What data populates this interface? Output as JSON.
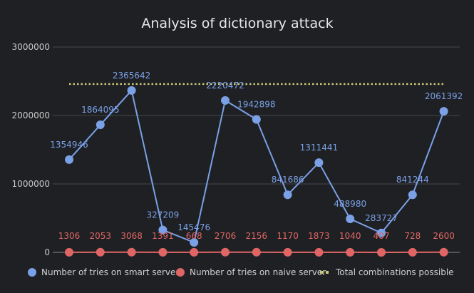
{
  "chart_data": {
    "type": "line",
    "title": "Analysis of dictionary attack",
    "xlabel": "",
    "ylabel": "",
    "ylim": [
      0,
      3000000
    ],
    "yticks": [
      0,
      1000000,
      2000000,
      3000000
    ],
    "ytick_labels": [
      "0",
      "1000000",
      "2000000",
      "3000000"
    ],
    "grid": true,
    "legend_position": "bottom",
    "x": [
      1,
      2,
      3,
      4,
      5,
      6,
      7,
      8,
      9,
      10,
      11,
      12,
      13
    ],
    "series": [
      {
        "name": "Number of tries on smart server",
        "color": "#7aa0e6",
        "marker": "circle",
        "values": [
          1354946,
          1864095,
          2365642,
          327209,
          145476,
          2220472,
          1942898,
          841686,
          1311441,
          488980,
          283727,
          841244,
          2061392
        ],
        "labels": [
          "1354946",
          "1864095",
          "2365642",
          "327209",
          "145476",
          "2220472",
          "1942898",
          "841686",
          "1311441",
          "488980",
          "283727",
          "841244",
          "2061392"
        ]
      },
      {
        "name": "Number of tries on naive server",
        "color": "#e06666",
        "marker": "circle",
        "values": [
          1306,
          2053,
          3068,
          1391,
          668,
          2706,
          2156,
          1170,
          1873,
          1040,
          407,
          728,
          2600
        ],
        "labels": [
          "1306",
          "2053",
          "3068",
          "1391",
          "668",
          "2706",
          "2156",
          "1170",
          "1873",
          "1040",
          "407",
          "728",
          "2600"
        ]
      },
      {
        "name": "Total combinations possible",
        "color": "#c9c97a",
        "style": "dotted",
        "values": [
          2460000,
          2460000,
          2460000,
          2460000,
          2460000,
          2460000,
          2460000,
          2460000,
          2460000,
          2460000,
          2460000,
          2460000,
          2460000
        ]
      }
    ]
  }
}
